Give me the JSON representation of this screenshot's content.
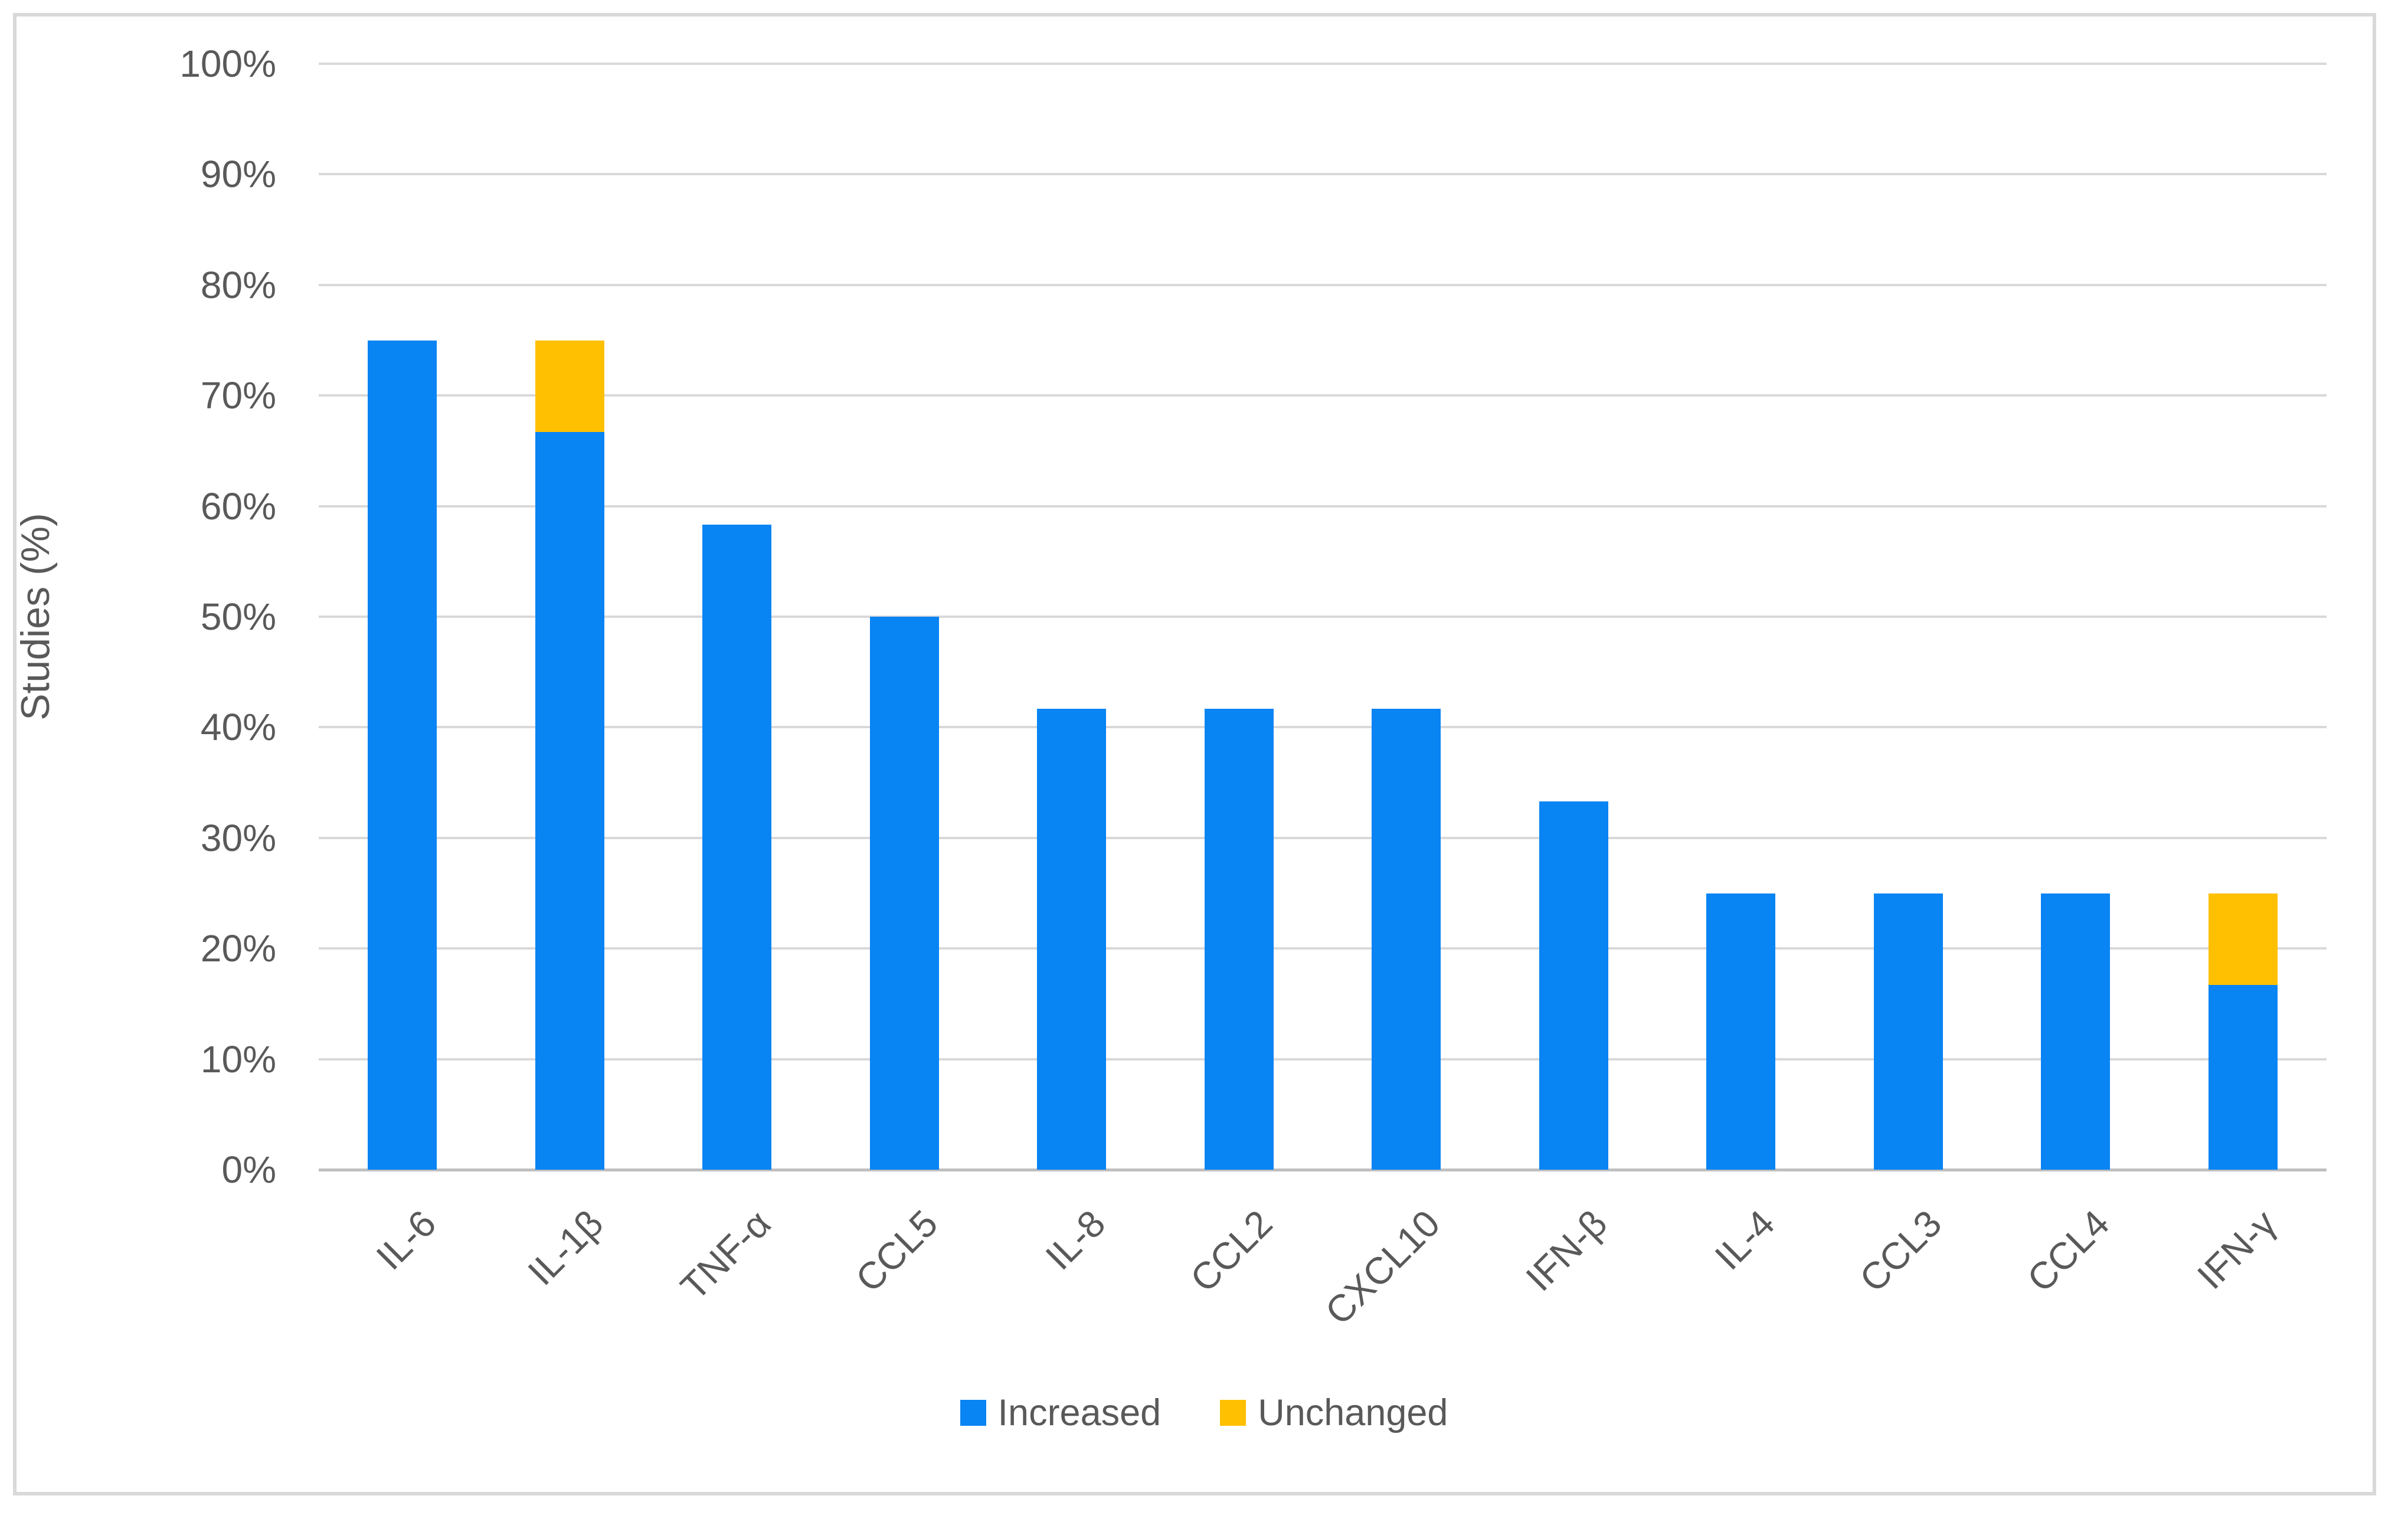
{
  "figure": {
    "background_color": "#ffffff",
    "border_color": "#d9d9d9",
    "gridline_color": "#d9d9d9",
    "axis_line_color": "#bfbfbf",
    "text_color": "#595959"
  },
  "chart_data": {
    "type": "bar",
    "stacked": true,
    "title": "",
    "xlabel": "",
    "ylabel": "Studies (%)",
    "ylim": [
      0,
      100
    ],
    "ytick_step": 10,
    "yticks": [
      "0%",
      "10%",
      "20%",
      "30%",
      "40%",
      "50%",
      "60%",
      "70%",
      "80%",
      "90%",
      "100%"
    ],
    "grid": true,
    "legend_position": "bottom",
    "categories": [
      "IL-6",
      "IL-1β",
      "TNF-α",
      "CCL5",
      "IL-8",
      "CCL2",
      "CXCL10",
      "IFN-β",
      "IL-4",
      "CCL3",
      "CCL4",
      "IFN-γ"
    ],
    "series": [
      {
        "name": "Increased",
        "color": "#0884f3",
        "values": [
          75,
          66.7,
          58.3,
          50,
          41.7,
          41.7,
          41.7,
          33.3,
          25,
          25,
          25,
          16.7
        ]
      },
      {
        "name": "Unchanged",
        "color": "#ffc002",
        "values": [
          0,
          8.3,
          0,
          0,
          0,
          0,
          0,
          0,
          0,
          0,
          0,
          8.3
        ]
      }
    ]
  }
}
